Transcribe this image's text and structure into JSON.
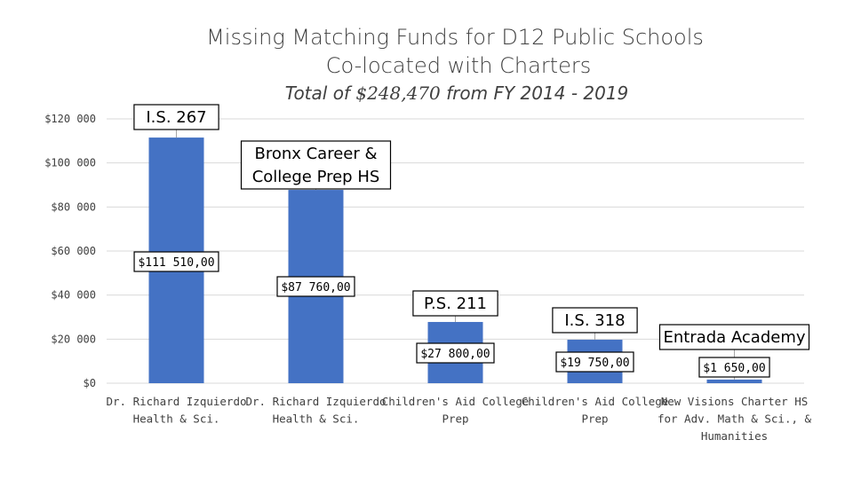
{
  "chart_data": {
    "type": "bar",
    "title": "Missing Matching Funds for D12 Public Schools",
    "title_line2": "Co-located with Charters",
    "subtitle": {
      "prefix": "Total of ",
      "amount": "$248,470",
      "suffix": " from FY 2014 - 2019"
    },
    "ylim": [
      0,
      120000
    ],
    "yticks": [
      {
        "value": 0,
        "label": "$0"
      },
      {
        "value": 20000,
        "label": "$20 000"
      },
      {
        "value": 40000,
        "label": "$40 000"
      },
      {
        "value": 60000,
        "label": "$60 000"
      },
      {
        "value": 80000,
        "label": "$80 000"
      },
      {
        "value": 100000,
        "label": "$100 000"
      },
      {
        "value": 120000,
        "label": "$120 000"
      }
    ],
    "grid": true,
    "bars": [
      {
        "category": [
          "Dr. Richard Izquierdo",
          "Health & Sci."
        ],
        "value": 111510,
        "value_label": "$111 510,00",
        "school": [
          "I.S. 267"
        ]
      },
      {
        "category": [
          "Dr. Richard Izquierdo",
          "Health & Sci."
        ],
        "value": 87760,
        "value_label": "$87 760,00",
        "school": [
          "Bronx Career &",
          "College Prep HS"
        ]
      },
      {
        "category": [
          "Children's Aid College",
          "Prep"
        ],
        "value": 27800,
        "value_label": "$27 800,00",
        "school": [
          "P.S. 211"
        ]
      },
      {
        "category": [
          "Children's Aid College",
          "Prep"
        ],
        "value": 19750,
        "value_label": "$19 750,00",
        "school": [
          "I.S. 318"
        ]
      },
      {
        "category": [
          "New Visions Charter HS",
          "for Adv. Math & Sci., &",
          "Humanities"
        ],
        "value": 1650,
        "value_label": "$1 650,00",
        "school": [
          "Entrada Academy"
        ]
      }
    ]
  }
}
